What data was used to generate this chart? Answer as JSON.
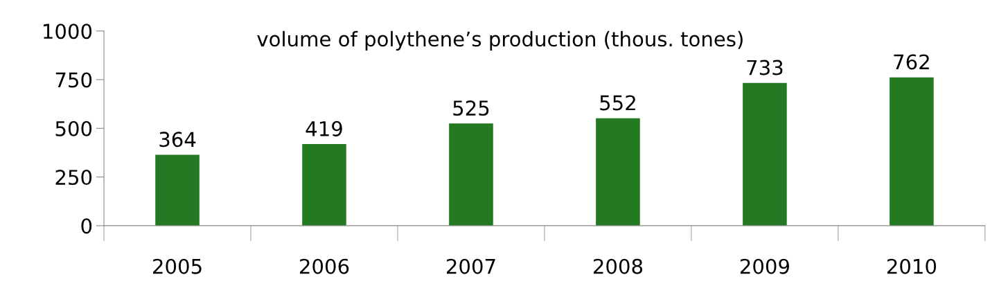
{
  "chart_data": {
    "type": "bar",
    "title": "volume of polythene’s production (thous. tones)",
    "categories": [
      "2005",
      "2006",
      "2007",
      "2008",
      "2009",
      "2010"
    ],
    "values": [
      364,
      419,
      525,
      552,
      733,
      762
    ],
    "color": "#237a23",
    "ylim": [
      0,
      1000
    ],
    "yticks": [
      0,
      250,
      500,
      750,
      1000
    ],
    "data_labels": true,
    "grid": false,
    "legend": false
  }
}
